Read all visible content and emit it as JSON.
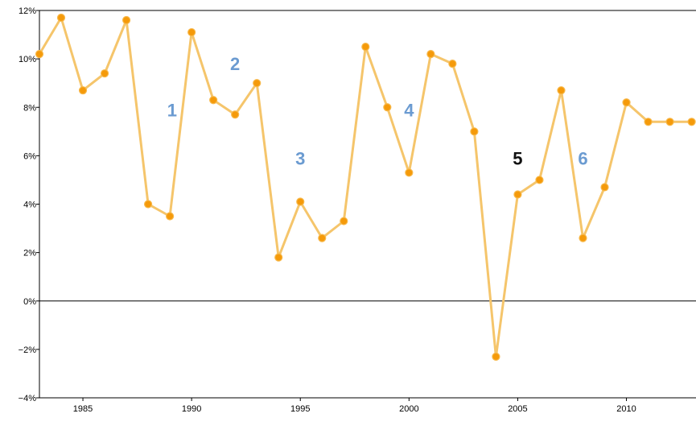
{
  "chart_data": {
    "type": "line",
    "title": "",
    "xlabel": "",
    "ylabel": "",
    "x": [
      1983,
      1984,
      1985,
      1986,
      1987,
      1988,
      1989,
      1990,
      1991,
      1992,
      1993,
      1994,
      1995,
      1996,
      1997,
      1998,
      1999,
      2000,
      2001,
      2002,
      2003,
      2004,
      2005,
      2006,
      2007,
      2008,
      2009,
      2010,
      2011,
      2012,
      2013
    ],
    "series": [
      {
        "values": [
          10.2,
          11.7,
          8.7,
          9.4,
          11.6,
          4.0,
          3.5,
          11.1,
          8.3,
          7.7,
          9.0,
          1.8,
          4.1,
          2.6,
          3.3,
          10.5,
          8.0,
          5.3,
          10.2,
          9.8,
          7.0,
          -2.3,
          4.4,
          5.0,
          8.7,
          2.6,
          4.7,
          8.2,
          7.4,
          7.4,
          7.4
        ],
        "color": "#f5c56b"
      }
    ],
    "marker_color": "#f59a0a",
    "xlim": [
      1983,
      2013.2
    ],
    "ylim": [
      -4,
      12
    ],
    "x_ticks": [
      1985,
      1990,
      1995,
      2000,
      2005,
      2010
    ],
    "y_ticks": [
      -4,
      -2,
      0,
      2,
      4,
      6,
      8,
      10,
      12
    ],
    "y_tick_labels": [
      "−4%",
      "−2%",
      "0%",
      "2%",
      "4%",
      "6%",
      "8%",
      "10%",
      "12%"
    ],
    "zero_line": true,
    "grid": false,
    "annotations": [
      {
        "text": "1",
        "x": 1989.1,
        "y": 7.9,
        "color": "#6b9bd1"
      },
      {
        "text": "2",
        "x": 1992.0,
        "y": 9.8,
        "color": "#6b9bd1"
      },
      {
        "text": "3",
        "x": 1995.0,
        "y": 5.9,
        "color": "#6b9bd1"
      },
      {
        "text": "4",
        "x": 2000.0,
        "y": 7.9,
        "color": "#6b9bd1"
      },
      {
        "text": "5",
        "x": 2005.0,
        "y": 5.9,
        "color": "#111111"
      },
      {
        "text": "6",
        "x": 2008.0,
        "y": 5.9,
        "color": "#6b9bd1"
      }
    ]
  }
}
